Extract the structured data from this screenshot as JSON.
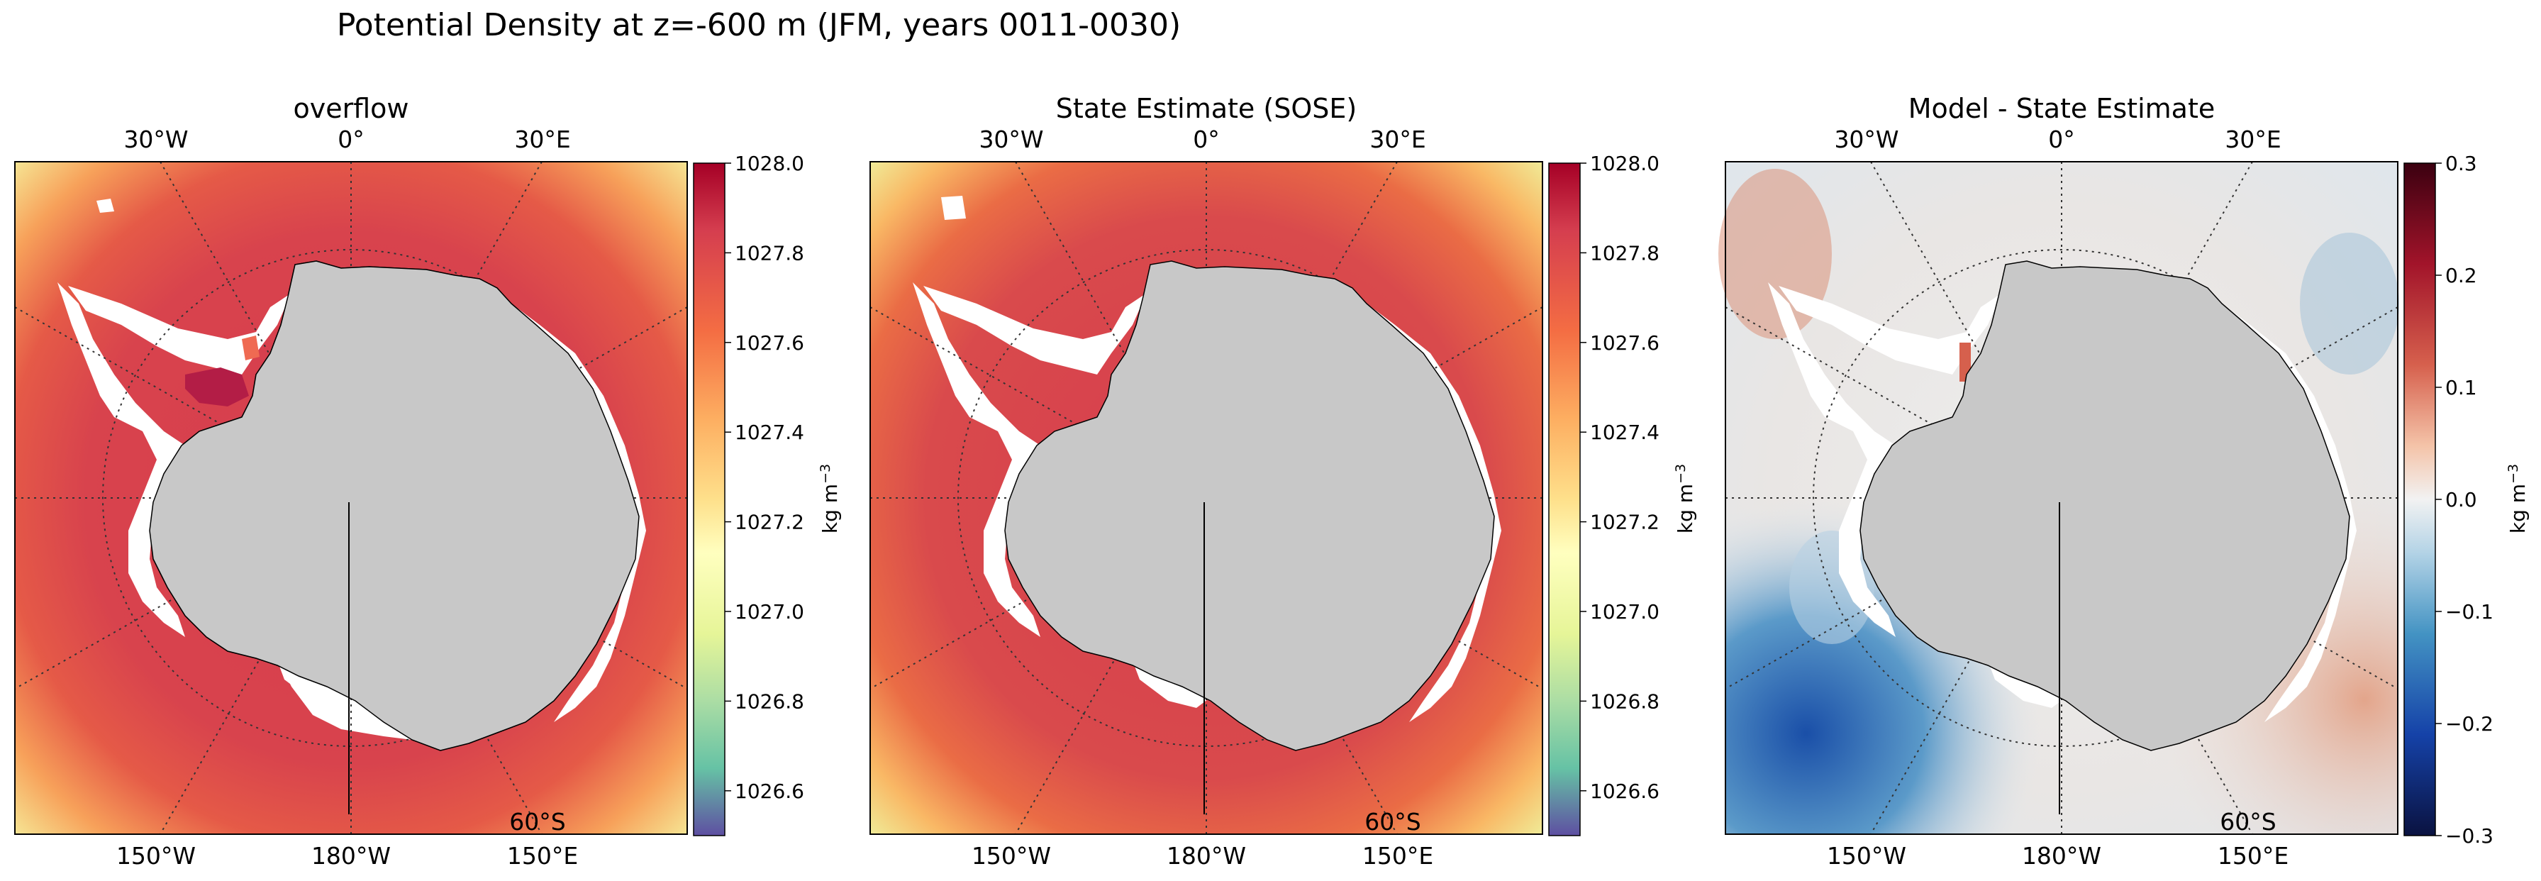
{
  "suptitle": "Potential Density at z=-600 m (JFM, years 0011-0030)",
  "colors": {
    "land": "#c8c8c8",
    "ice_shelf": "#ffffff",
    "density_open_ocean": "#d43d4f",
    "density_outer": "#f4a34f",
    "diff_neutral": "#eeeeee",
    "diff_negative": "#2166ac",
    "diff_positive": "#b2182b"
  },
  "chart_data": [
    {
      "type": "heatmap",
      "title": "overflow",
      "projection": "south-polar stereographic",
      "top_lon_labels": [
        "30°W",
        "0°",
        "30°E"
      ],
      "bottom_lon_labels": [
        "150°W",
        "180°W",
        "150°E"
      ],
      "lat_label": "60°S",
      "colormap": "Spectral_r",
      "colorbar": {
        "label": "kg m",
        "label_exponent": "−3",
        "ticks": [
          "1028.0",
          "1027.8",
          "1027.6",
          "1027.4",
          "1027.2",
          "1027.0",
          "1026.8",
          "1026.6"
        ],
        "range": [
          1026.5,
          1028.0
        ]
      }
    },
    {
      "type": "heatmap",
      "title": "State Estimate (SOSE)",
      "projection": "south-polar stereographic",
      "top_lon_labels": [
        "30°W",
        "0°",
        "30°E"
      ],
      "bottom_lon_labels": [
        "150°W",
        "180°W",
        "150°E"
      ],
      "lat_label": "60°S",
      "colormap": "Spectral_r",
      "colorbar": {
        "label": "kg m",
        "label_exponent": "−3",
        "ticks": [
          "1028.0",
          "1027.8",
          "1027.6",
          "1027.4",
          "1027.2",
          "1027.0",
          "1026.8",
          "1026.6"
        ],
        "range": [
          1026.5,
          1028.0
        ]
      }
    },
    {
      "type": "heatmap",
      "title": "Model - State Estimate",
      "projection": "south-polar stereographic",
      "top_lon_labels": [
        "30°W",
        "0°",
        "30°E"
      ],
      "bottom_lon_labels": [
        "150°W",
        "180°W",
        "150°E"
      ],
      "lat_label": "60°S",
      "colormap": "RdBu_r",
      "colorbar": {
        "label": "kg m",
        "label_exponent": "−3",
        "ticks": [
          "0.3",
          "0.2",
          "0.1",
          "0.0",
          "−0.1",
          "−0.2",
          "−0.3"
        ],
        "range": [
          -0.3,
          0.3
        ]
      }
    }
  ]
}
